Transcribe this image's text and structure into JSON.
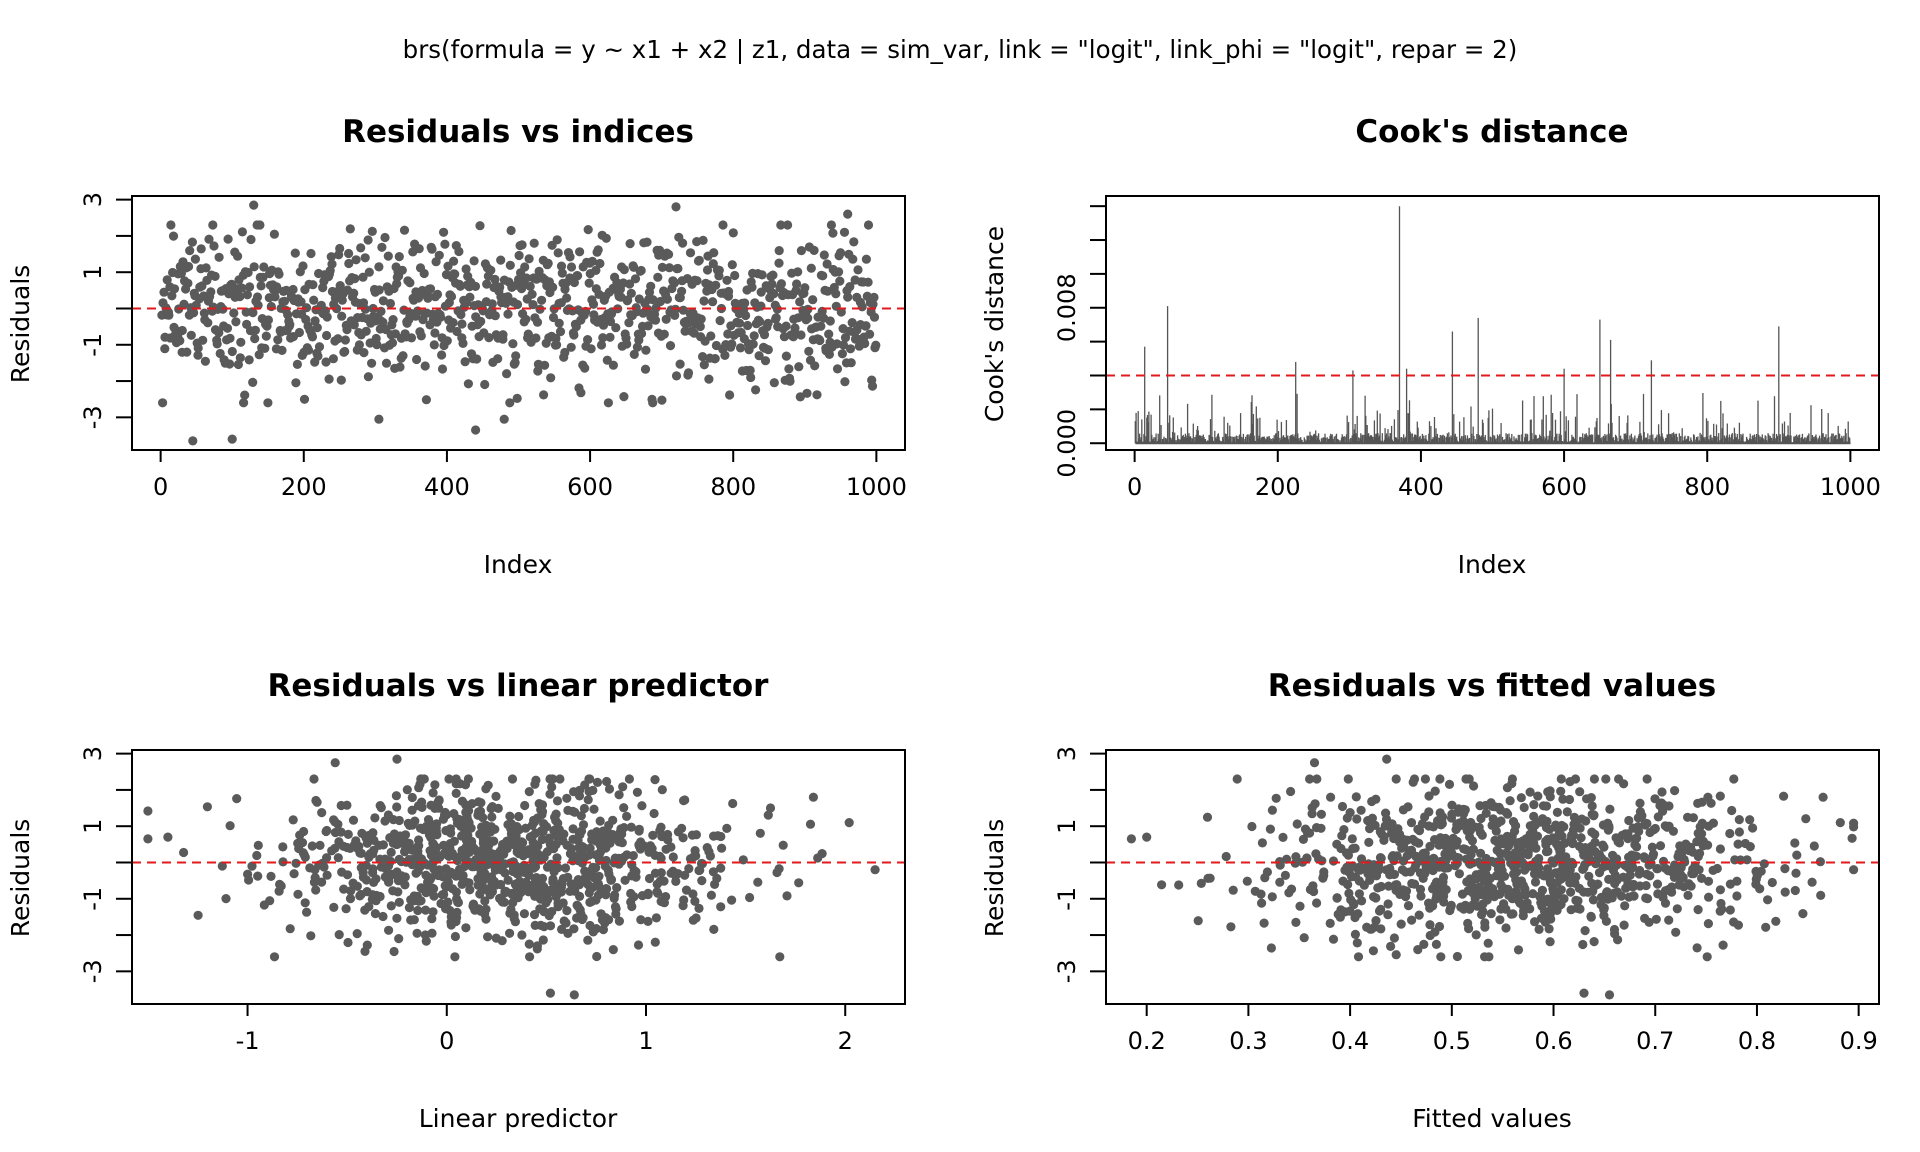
{
  "figure": {
    "suptitle": "brs(formula = y ~ x1 + x2 | z1, data = sim_var, link = \"logit\", link_phi = \"logit\",      repar = 2)",
    "colors": {
      "points": "#5a5a5a",
      "reference_line": "#e31a1c",
      "spikes": "#555555"
    }
  },
  "chart_data": [
    {
      "type": "scatter",
      "title": "Residuals vs indices",
      "xlabel": "Index",
      "ylabel": "Residuals",
      "xlim": [
        -40,
        1040
      ],
      "ylim": [
        -3.9,
        3.1
      ],
      "xticks": [
        0,
        200,
        400,
        600,
        800,
        1000
      ],
      "yticks": [
        -3,
        -2,
        -1,
        0,
        1,
        2,
        3
      ],
      "ytick_labels": [
        "-3",
        "",
        "-1",
        "",
        "1",
        "",
        "3"
      ],
      "reference_line": {
        "y": 0,
        "style": "dashed",
        "color": "#e31a1c"
      },
      "n_points": 1000,
      "x_range": [
        1,
        1000
      ],
      "y_range": [
        -3.7,
        2.85
      ],
      "highlighted_points": [
        {
          "x": 45,
          "y": -3.65
        },
        {
          "x": 100,
          "y": -3.6
        },
        {
          "x": 130,
          "y": 2.85
        },
        {
          "x": 305,
          "y": -3.05
        },
        {
          "x": 440,
          "y": -3.35
        },
        {
          "x": 480,
          "y": -3.05
        },
        {
          "x": 720,
          "y": 2.8
        },
        {
          "x": 960,
          "y": 2.6
        }
      ],
      "grid": false
    },
    {
      "type": "bar",
      "title": "Cook's distance",
      "xlabel": "Index",
      "ylabel": "Cook's distance",
      "xlim": [
        -40,
        1040
      ],
      "ylim": [
        -0.0004,
        0.0146
      ],
      "xticks": [
        0,
        200,
        400,
        600,
        800,
        1000
      ],
      "yticks": [
        0,
        0.002,
        0.004,
        0.006,
        0.008,
        0.01,
        0.012,
        0.014
      ],
      "ytick_labels": [
        "0.000",
        "",
        "",
        "",
        "0.008",
        "",
        "",
        ""
      ],
      "reference_line": {
        "y": 0.004,
        "style": "dashed",
        "color": "#e31a1c"
      },
      "n_points": 1000,
      "peaks": [
        {
          "x": 5,
          "y": 0.0019
        },
        {
          "x": 14,
          "y": 0.0057
        },
        {
          "x": 46,
          "y": 0.0081
        },
        {
          "x": 225,
          "y": 0.0048
        },
        {
          "x": 305,
          "y": 0.0043
        },
        {
          "x": 370,
          "y": 0.014
        },
        {
          "x": 380,
          "y": 0.0044
        },
        {
          "x": 444,
          "y": 0.0066
        },
        {
          "x": 480,
          "y": 0.0074
        },
        {
          "x": 600,
          "y": 0.0044
        },
        {
          "x": 650,
          "y": 0.0073
        },
        {
          "x": 665,
          "y": 0.0061
        },
        {
          "x": 722,
          "y": 0.0049
        },
        {
          "x": 900,
          "y": 0.0069
        }
      ],
      "grid": false
    },
    {
      "type": "scatter",
      "title": "Residuals vs linear predictor",
      "xlabel": "Linear predictor",
      "ylabel": "Residuals",
      "xlim": [
        -1.58,
        2.3
      ],
      "ylim": [
        -3.9,
        3.1
      ],
      "xticks": [
        -1,
        0,
        1,
        2
      ],
      "yticks": [
        -3,
        -2,
        -1,
        0,
        1,
        2,
        3
      ],
      "ytick_labels": [
        "-3",
        "",
        "-1",
        "",
        "1",
        "",
        "3"
      ],
      "reference_line": {
        "y": 0,
        "style": "dashed",
        "color": "#e31a1c"
      },
      "n_points": 1000,
      "x_range": [
        -1.5,
        2.15
      ],
      "y_range": [
        -3.7,
        2.85
      ],
      "highlighted_points": [
        {
          "x": -1.5,
          "y": 0.65
        },
        {
          "x": -1.4,
          "y": 0.7
        },
        {
          "x": -0.56,
          "y": 2.75
        },
        {
          "x": -0.25,
          "y": 2.85
        },
        {
          "x": 0.52,
          "y": -3.6
        },
        {
          "x": 0.64,
          "y": -3.65
        },
        {
          "x": 1.84,
          "y": 1.8
        },
        {
          "x": 2.02,
          "y": 1.1
        },
        {
          "x": 2.15,
          "y": -0.2
        }
      ],
      "grid": false
    },
    {
      "type": "scatter",
      "title": "Residuals vs fitted values",
      "xlabel": "Fitted values",
      "ylabel": "Residuals",
      "xlim": [
        0.16,
        0.92
      ],
      "ylim": [
        -3.9,
        3.1
      ],
      "xticks": [
        0.2,
        0.3,
        0.4,
        0.5,
        0.6,
        0.7,
        0.8,
        0.9
      ],
      "yticks": [
        -3,
        -2,
        -1,
        0,
        1,
        2,
        3
      ],
      "ytick_labels": [
        "-3",
        "",
        "-1",
        "",
        "1",
        "",
        "3"
      ],
      "reference_line": {
        "y": 0,
        "style": "dashed",
        "color": "#e31a1c"
      },
      "n_points": 1000,
      "x_range": [
        0.18,
        0.895
      ],
      "y_range": [
        -3.7,
        2.85
      ],
      "highlighted_points": [
        {
          "x": 0.185,
          "y": 0.65
        },
        {
          "x": 0.2,
          "y": 0.7
        },
        {
          "x": 0.365,
          "y": 2.75
        },
        {
          "x": 0.436,
          "y": 2.85
        },
        {
          "x": 0.63,
          "y": -3.6
        },
        {
          "x": 0.655,
          "y": -3.65
        },
        {
          "x": 0.865,
          "y": 1.8
        },
        {
          "x": 0.882,
          "y": 1.1
        },
        {
          "x": 0.895,
          "y": -0.2
        }
      ],
      "grid": false
    }
  ]
}
